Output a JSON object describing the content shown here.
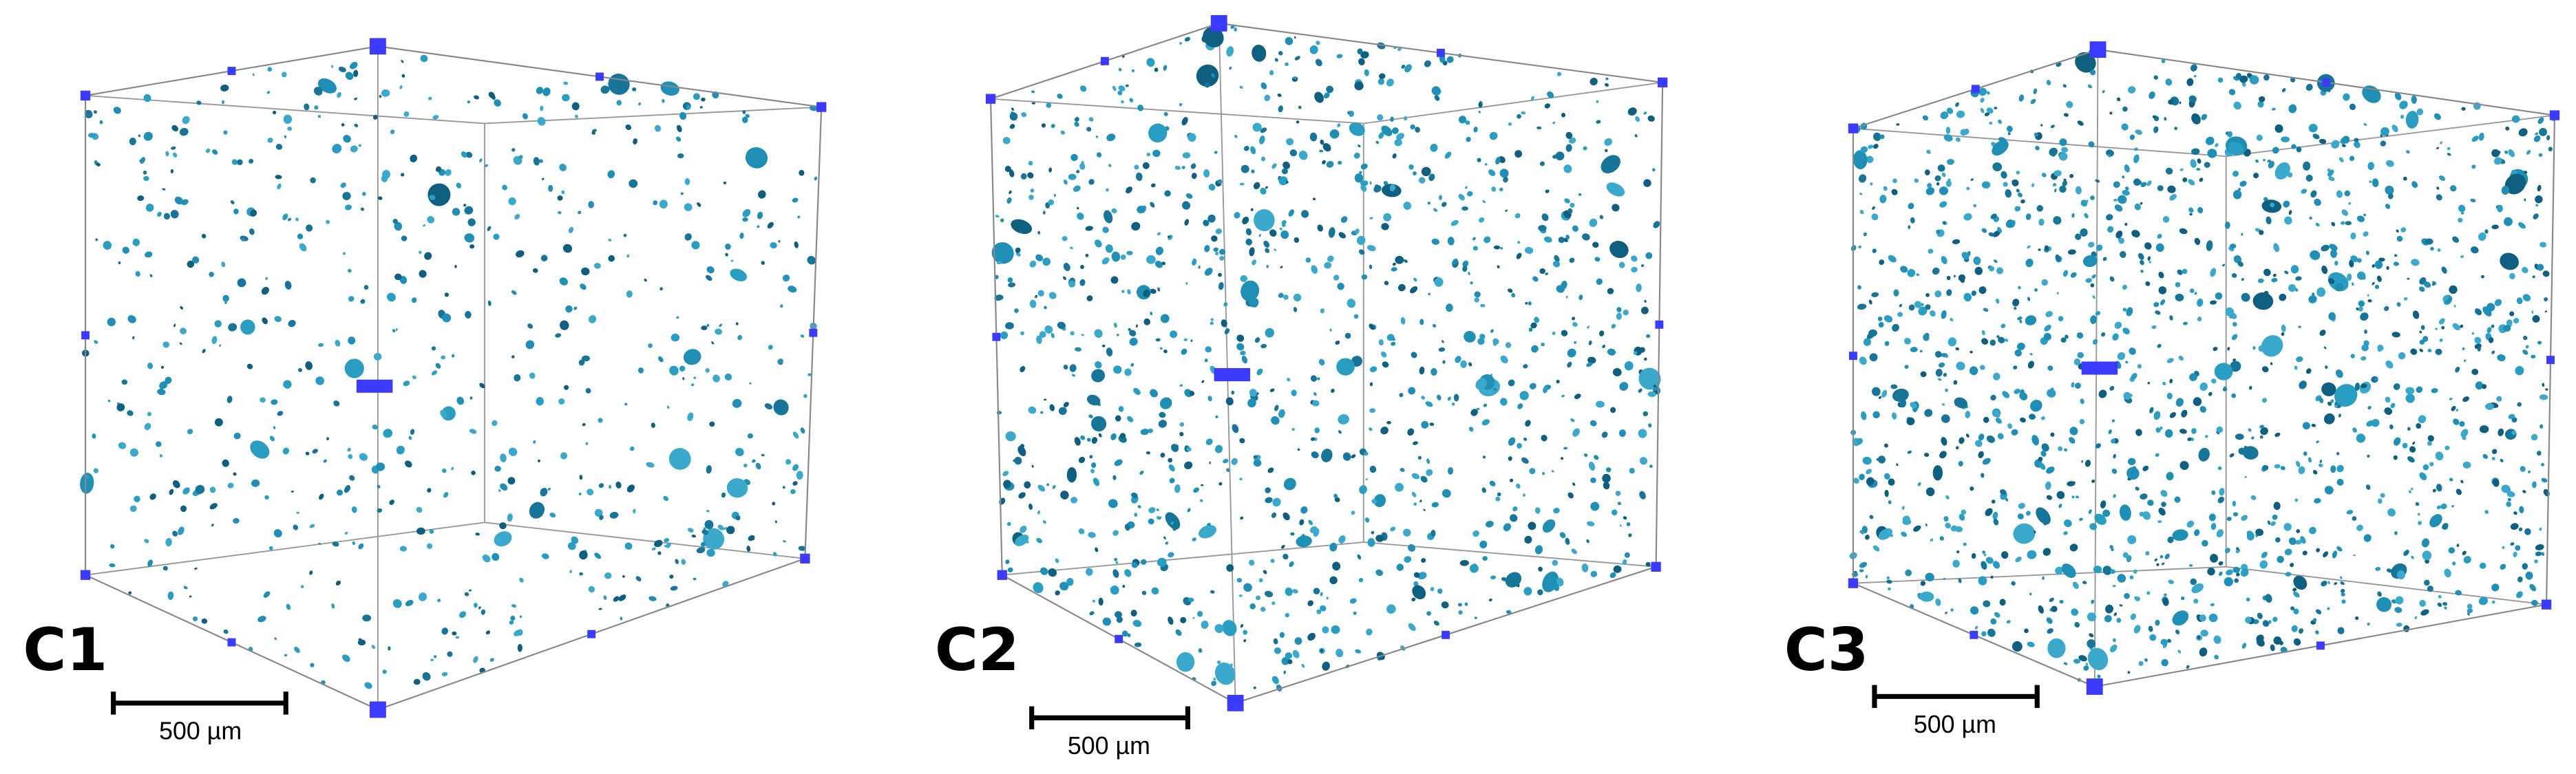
{
  "panels": [
    {
      "label": "C1",
      "scale_label": "500 µm"
    },
    {
      "label": "C2",
      "scale_label": "500 µm"
    },
    {
      "label": "C3",
      "scale_label": "500 µm"
    }
  ]
}
